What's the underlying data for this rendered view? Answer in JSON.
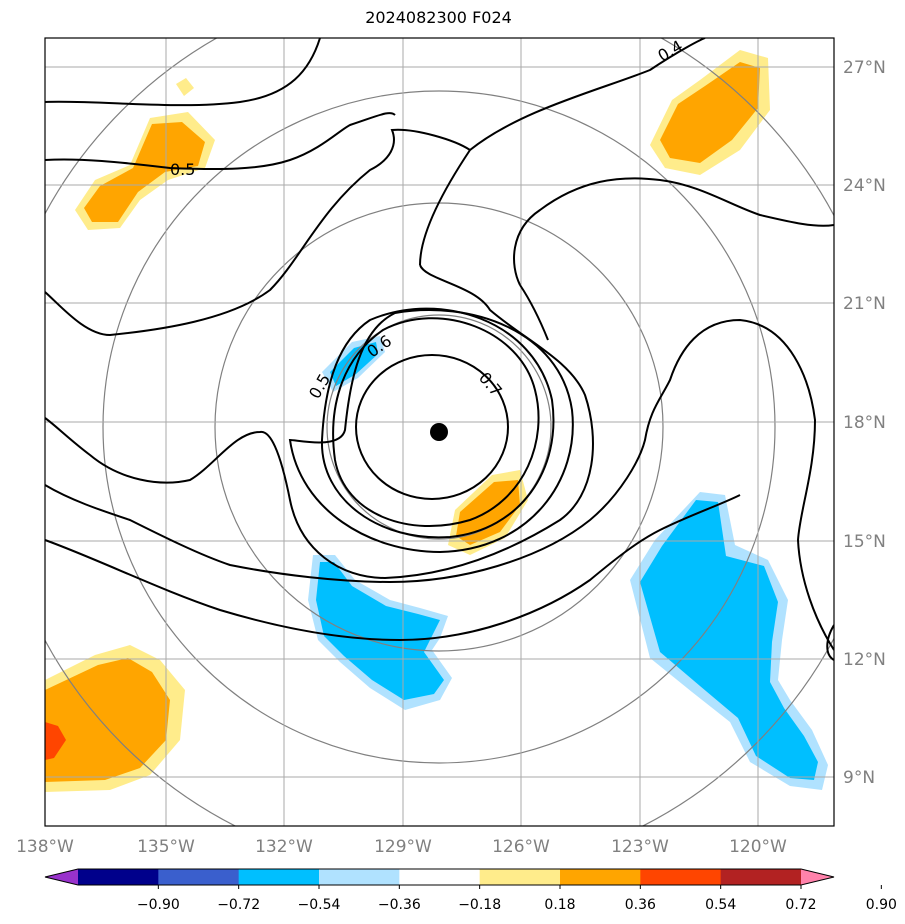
{
  "title": "2024082300 F024",
  "map": {
    "lon_labels": [
      "138°W",
      "135°W",
      "132°W",
      "129°W",
      "126°W",
      "123°W",
      "120°W"
    ],
    "lat_labels": [
      "27°N",
      "24°N",
      "21°N",
      "18°N",
      "15°N",
      "12°N",
      "9°N"
    ],
    "storm_center": {
      "lon": "128°W",
      "lat": "17.8°N"
    },
    "contour_labels": [
      "0.4",
      "0.5",
      "0.6",
      "0.5",
      "0.7"
    ],
    "colors": {
      "neg_090": "#9932CC",
      "neg_072": "#00008B",
      "neg_054": "#3A5FCD",
      "neg_036": "#00BFFF",
      "neg_018": "#B0E2FF",
      "neutral": "#FFFFFF",
      "pos_018": "#FFEC8B",
      "pos_036": "#FFA500",
      "pos_054": "#FF4500",
      "pos_072": "#B22222",
      "pos_090": "#FF82AB"
    }
  },
  "colorbar": {
    "ticks": [
      "−0.90",
      "−0.72",
      "−0.54",
      "−0.36",
      "−0.18",
      "0.18",
      "0.36",
      "0.54",
      "0.72",
      "0.90"
    ],
    "segments": [
      "#9932CC",
      "#00008B",
      "#3A5FCD",
      "#00BFFF",
      "#B0E2FF",
      "#FFFFFF",
      "#FFEC8B",
      "#FFA500",
      "#FF4500",
      "#B22222",
      "#FF82AB"
    ]
  }
}
